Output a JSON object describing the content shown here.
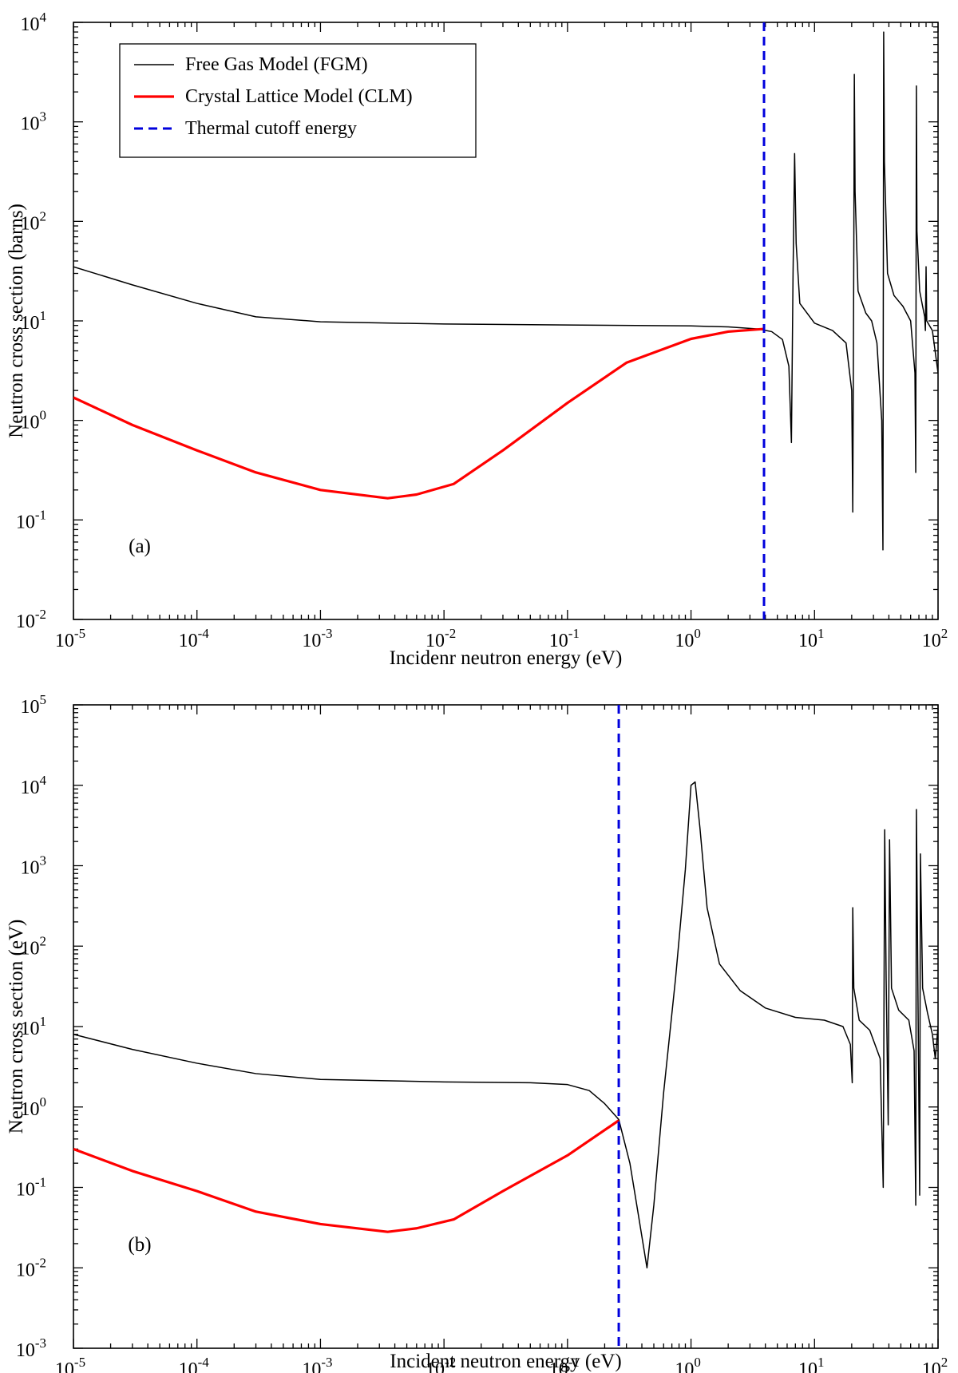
{
  "chart_data": [
    {
      "panel": "(a)",
      "type": "line",
      "xscale": "log",
      "yscale": "log",
      "xlabel": "Incidenr neutron energy (eV)",
      "ylabel": "Neutron cross section (barns)",
      "xlim": [
        1e-05,
        100
      ],
      "ylim": [
        0.01,
        10000
      ],
      "xtick_exponents": [
        "-5",
        "-4",
        "-3",
        "-2",
        "-1",
        "0",
        "1",
        "2"
      ],
      "ytick_exponents": [
        "-2",
        "-1",
        "0",
        "1",
        "2",
        "3",
        "4"
      ],
      "tick_base": "10",
      "grid": false,
      "legend": {
        "position": "top-left",
        "entries": [
          {
            "label": "Free Gas Model (FGM)",
            "color": "#000000",
            "style": "solid"
          },
          {
            "label": "Crystal Lattice Model (CLM)",
            "color": "#ff0000",
            "style": "solid"
          },
          {
            "label": "Thermal cutoff energy",
            "color": "#0000dd",
            "style": "dashed"
          }
        ]
      },
      "series": [
        {
          "name": "Free Gas Model (FGM)",
          "color": "#000000",
          "points": [
            [
              1e-05,
              35
            ],
            [
              3e-05,
              23
            ],
            [
              0.0001,
              15
            ],
            [
              0.0003,
              11
            ],
            [
              0.001,
              9.8
            ],
            [
              0.01,
              9.3
            ],
            [
              0.1,
              9.1
            ],
            [
              1,
              8.9
            ],
            [
              2,
              8.7
            ],
            [
              3.5,
              8.3
            ],
            [
              4.5,
              7.8
            ],
            [
              5.5,
              6.5
            ],
            [
              6.2,
              3.5
            ],
            [
              6.5,
              0.6
            ],
            [
              6.7,
              30
            ],
            [
              6.9,
              480
            ],
            [
              7.1,
              60
            ],
            [
              7.6,
              15
            ],
            [
              10,
              9.5
            ],
            [
              14,
              8
            ],
            [
              18,
              6
            ],
            [
              20,
              2
            ],
            [
              20.4,
              0.12
            ],
            [
              20.8,
              50
            ],
            [
              21,
              3000
            ],
            [
              21.3,
              200
            ],
            [
              22.5,
              20
            ],
            [
              26,
              12
            ],
            [
              29,
              10
            ],
            [
              32,
              6
            ],
            [
              35,
              1
            ],
            [
              35.8,
              0.05
            ],
            [
              36.3,
              8000
            ],
            [
              36.8,
              400
            ],
            [
              39,
              30
            ],
            [
              44,
              18
            ],
            [
              52,
              14
            ],
            [
              60,
              10
            ],
            [
              65,
              3
            ],
            [
              66,
              0.3
            ],
            [
              66.8,
              2300
            ],
            [
              67.5,
              80
            ],
            [
              71,
              20
            ],
            [
              75,
              14
            ],
            [
              78,
              11
            ],
            [
              79,
              8
            ],
            [
              80,
              35
            ],
            [
              81,
              10
            ],
            [
              90,
              8
            ],
            [
              100,
              3
            ]
          ]
        },
        {
          "name": "Crystal Lattice Model (CLM)",
          "color": "#ff0000",
          "points": [
            [
              1e-05,
              1.7
            ],
            [
              3e-05,
              0.9
            ],
            [
              0.0001,
              0.5
            ],
            [
              0.0003,
              0.3
            ],
            [
              0.001,
              0.2
            ],
            [
              0.0035,
              0.165
            ],
            [
              0.006,
              0.18
            ],
            [
              0.012,
              0.23
            ],
            [
              0.03,
              0.5
            ],
            [
              0.1,
              1.5
            ],
            [
              0.3,
              3.8
            ],
            [
              1,
              6.6
            ],
            [
              2,
              7.8
            ],
            [
              3.9,
              8.3
            ]
          ]
        }
      ],
      "cutoff_x": 3.9,
      "annotations": [
        "(a)"
      ]
    },
    {
      "panel": "(b)",
      "type": "line",
      "xscale": "log",
      "yscale": "log",
      "xlabel": "Incident neutron energy (eV)",
      "ylabel": "Neutron cross section (eV)",
      "xlim": [
        1e-05,
        100
      ],
      "ylim": [
        0.001,
        100000
      ],
      "xtick_exponents": [
        "-5",
        "-4",
        "-3",
        "-2",
        "-1",
        "0",
        "1",
        "2"
      ],
      "ytick_exponents": [
        "-3",
        "-2",
        "-1",
        "0",
        "1",
        "2",
        "3",
        "4",
        "5"
      ],
      "tick_base": "10",
      "grid": false,
      "series": [
        {
          "name": "Free Gas Model (FGM)",
          "color": "#000000",
          "points": [
            [
              1e-05,
              8
            ],
            [
              3e-05,
              5.2
            ],
            [
              0.0001,
              3.5
            ],
            [
              0.0003,
              2.6
            ],
            [
              0.001,
              2.2
            ],
            [
              0.01,
              2.05
            ],
            [
              0.05,
              2
            ],
            [
              0.1,
              1.9
            ],
            [
              0.15,
              1.6
            ],
            [
              0.2,
              1.1
            ],
            [
              0.26,
              0.7
            ],
            [
              0.32,
              0.2
            ],
            [
              0.38,
              0.04
            ],
            [
              0.44,
              0.01
            ],
            [
              0.5,
              0.06
            ],
            [
              0.6,
              1.5
            ],
            [
              0.75,
              40
            ],
            [
              0.9,
              900
            ],
            [
              1,
              10000
            ],
            [
              1.08,
              11000
            ],
            [
              1.18,
              3000
            ],
            [
              1.35,
              300
            ],
            [
              1.7,
              60
            ],
            [
              2.5,
              28
            ],
            [
              4,
              17
            ],
            [
              7,
              13
            ],
            [
              12,
              12
            ],
            [
              17,
              10
            ],
            [
              19.5,
              6
            ],
            [
              20.2,
              2
            ],
            [
              20.4,
              300
            ],
            [
              20.8,
              30
            ],
            [
              23,
              12
            ],
            [
              28,
              9
            ],
            [
              34,
              4
            ],
            [
              36,
              0.1
            ],
            [
              37,
              2800
            ],
            [
              38,
              40
            ],
            [
              39.5,
              0.6
            ],
            [
              40.5,
              2100
            ],
            [
              42,
              30
            ],
            [
              48,
              16
            ],
            [
              58,
              12
            ],
            [
              64,
              5
            ],
            [
              66,
              0.06
            ],
            [
              66.8,
              5000
            ],
            [
              68,
              200
            ],
            [
              71,
              0.08
            ],
            [
              72,
              1400
            ],
            [
              75,
              30
            ],
            [
              82,
              15
            ],
            [
              90,
              8
            ],
            [
              95,
              4
            ],
            [
              100,
              10
            ]
          ]
        },
        {
          "name": "Crystal Lattice Model (CLM)",
          "color": "#ff0000",
          "points": [
            [
              1e-05,
              0.3
            ],
            [
              3e-05,
              0.16
            ],
            [
              0.0001,
              0.09
            ],
            [
              0.0003,
              0.05
            ],
            [
              0.001,
              0.035
            ],
            [
              0.0035,
              0.028
            ],
            [
              0.006,
              0.031
            ],
            [
              0.012,
              0.04
            ],
            [
              0.03,
              0.09
            ],
            [
              0.1,
              0.25
            ],
            [
              0.26,
              0.68
            ]
          ]
        }
      ],
      "cutoff_x": 0.26,
      "annotations": [
        "(b)"
      ]
    }
  ]
}
